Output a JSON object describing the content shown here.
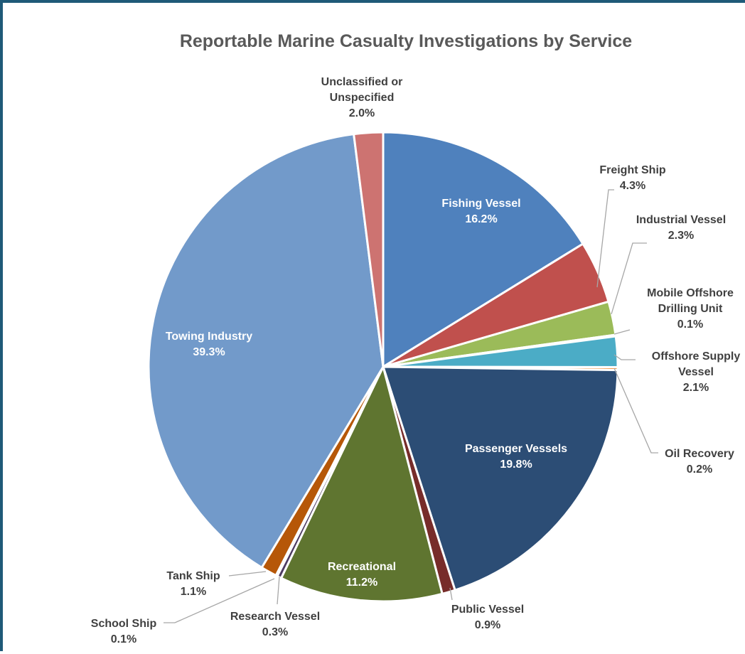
{
  "chart_data": {
    "type": "pie",
    "title": "Reportable Marine Casualty Investigations by Service",
    "slices": [
      {
        "name": "Fishing Vessel",
        "label_lines": [
          "Fishing Vessel"
        ],
        "pct_text": "16.2%",
        "value": 16.2,
        "color": "#4f81bd"
      },
      {
        "name": "Freight Ship",
        "label_lines": [
          "Freight Ship"
        ],
        "pct_text": "4.3%",
        "value": 4.3,
        "color": "#c0504d"
      },
      {
        "name": "Industrial Vessel",
        "label_lines": [
          "Industrial Vessel"
        ],
        "pct_text": "2.3%",
        "value": 2.3,
        "color": "#9bbb59"
      },
      {
        "name": "Mobile Offshore Drilling Unit",
        "label_lines": [
          "Mobile Offshore",
          "Drilling Unit"
        ],
        "pct_text": "0.1%",
        "value": 0.1,
        "color": "#8064a2"
      },
      {
        "name": "Offshore Supply Vessel",
        "label_lines": [
          "Offshore Supply",
          "Vessel"
        ],
        "pct_text": "2.1%",
        "value": 2.1,
        "color": "#4bacc6"
      },
      {
        "name": "Oil Recovery",
        "label_lines": [
          "Oil Recovery"
        ],
        "pct_text": "0.2%",
        "value": 0.2,
        "color": "#f79646"
      },
      {
        "name": "Passenger Vessels",
        "label_lines": [
          "Passenger Vessels"
        ],
        "pct_text": "19.8%",
        "value": 19.8,
        "color": "#2c4d75"
      },
      {
        "name": "Public Vessel",
        "label_lines": [
          "Public Vessel"
        ],
        "pct_text": "0.9%",
        "value": 0.9,
        "color": "#772c2a"
      },
      {
        "name": "Recreational",
        "label_lines": [
          "Recreational"
        ],
        "pct_text": "11.2%",
        "value": 11.2,
        "color": "#5f7530"
      },
      {
        "name": "Research Vessel",
        "label_lines": [
          "Research Vessel"
        ],
        "pct_text": "0.3%",
        "value": 0.3,
        "color": "#4d3b62"
      },
      {
        "name": "School Ship",
        "label_lines": [
          "School Ship"
        ],
        "pct_text": "0.1%",
        "value": 0.1,
        "color": "#276a7c"
      },
      {
        "name": "Tank Ship",
        "label_lines": [
          "Tank Ship"
        ],
        "pct_text": "1.1%",
        "value": 1.1,
        "color": "#b65708"
      },
      {
        "name": "Towing Industry",
        "label_lines": [
          "Towing Industry"
        ],
        "pct_text": "39.3%",
        "value": 39.3,
        "color": "#729aca"
      },
      {
        "name": "Unclassified or Unspecified",
        "label_lines": [
          "Unclassified or",
          "Unspecified"
        ],
        "pct_text": "2.0%",
        "value": 2.0,
        "color": "#cd7371"
      }
    ]
  }
}
